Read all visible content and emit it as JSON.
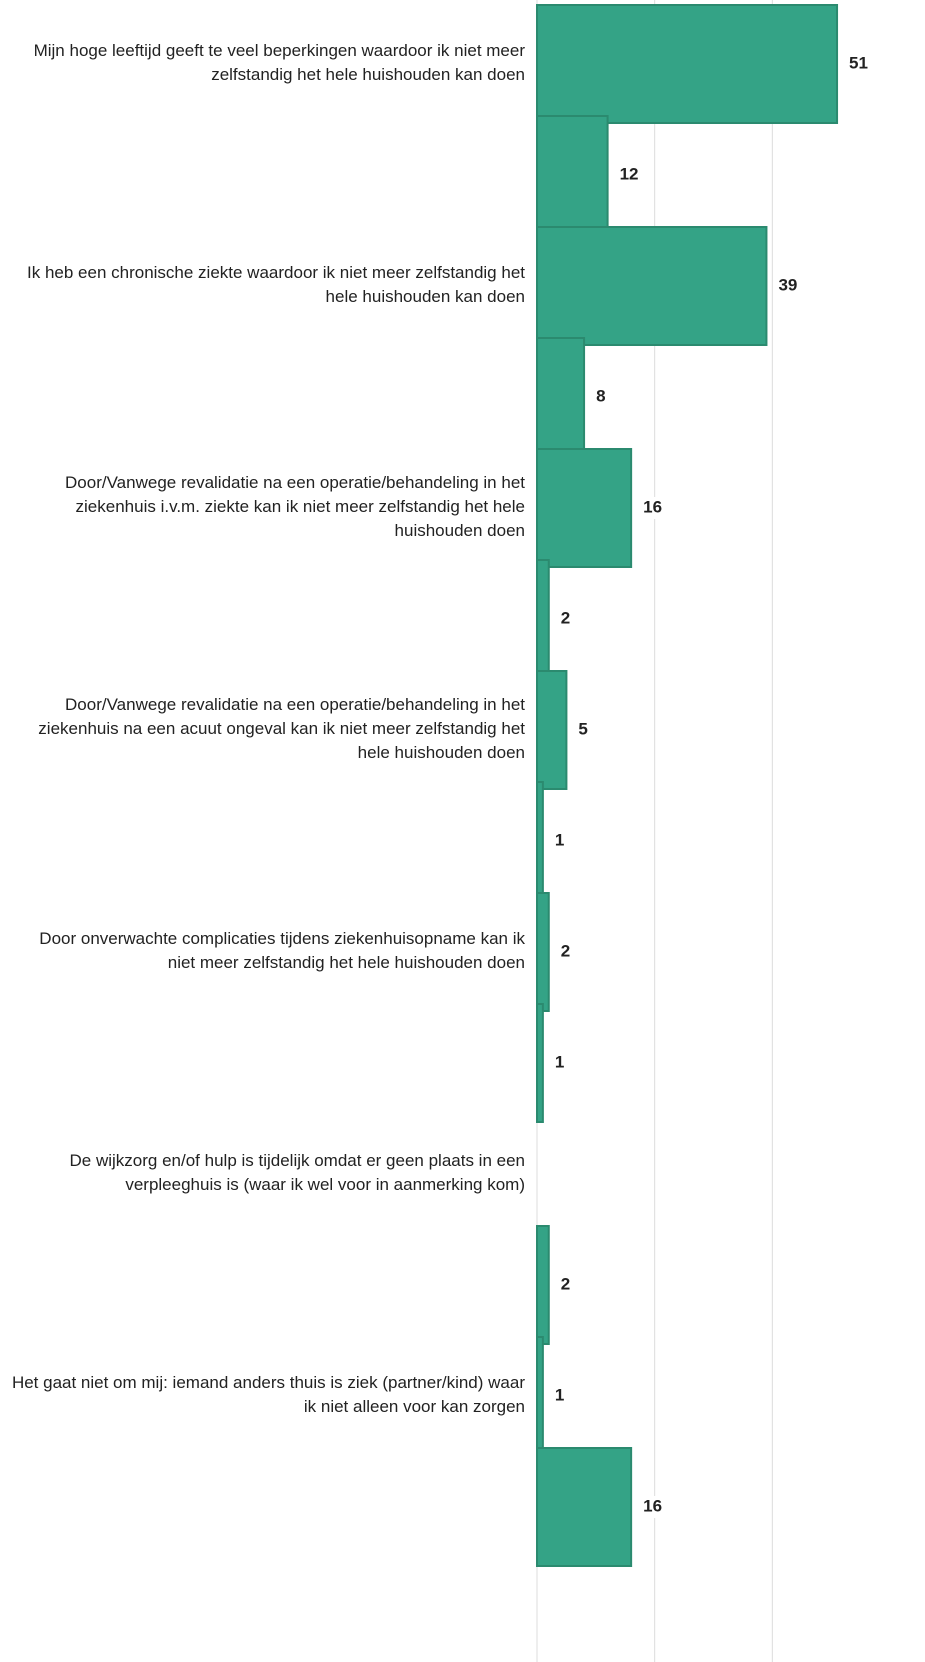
{
  "chart_data": {
    "type": "barh",
    "categories": [
      "Mijn hoge leeftijd geeft te veel beperkingen waardoor ik niet meer zelfstandig het hele huishouden kan doen",
      null,
      "Ik heb een chronische ziekte waardoor ik niet meer zelfstandig het hele huishouden kan doen",
      null,
      "Door/Vanwege revalidatie na een operatie/behandeling in het ziekenhuis i.v.m. ziekte kan ik niet meer zelfstandig het hele huishouden doen",
      null,
      "Door/Vanwege revalidatie na een operatie/behandeling in het ziekenhuis na een acuut ongeval kan ik niet meer zelfstandig het hele huishouden doen",
      null,
      "Door onverwachte complicaties tijdens ziekenhuisopname kan ik niet meer zelfstandig het hele huishouden doen",
      null,
      "De wijkzorg en/of hulp is tijdelijk omdat er geen plaats in een verpleeghuis is (waar ik wel voor in aanmerking kom)",
      null,
      "Het gaat niet om mij: iemand anders thuis is ziek (partner/kind) waar ik niet alleen voor kan zorgen",
      null
    ],
    "values": [
      51,
      12,
      39,
      8,
      16,
      2,
      5,
      1,
      2,
      1,
      null,
      2,
      1,
      16
    ],
    "color": "#34a386",
    "xlim": [
      0,
      60
    ],
    "xticks": [
      0,
      20,
      40
    ],
    "grid": true
  }
}
